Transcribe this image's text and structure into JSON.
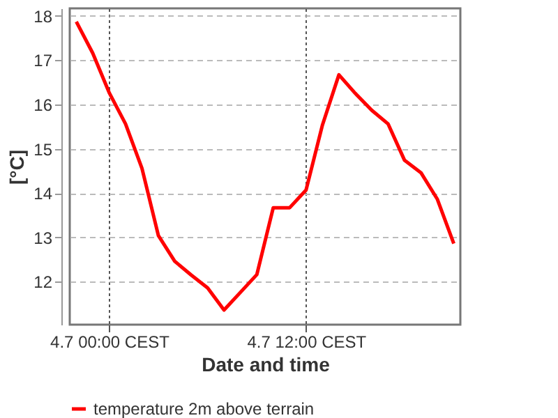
{
  "chart_data": {
    "type": "line",
    "xlabel": "Date and time",
    "ylabel": "[°C]",
    "x": [
      "--07-03T22:00",
      "--07-03T23:00",
      "--07-04T00:00",
      "--07-04T01:00",
      "--07-04T02:00",
      "--07-04T03:00",
      "--07-04T04:00",
      "--07-04T05:00",
      "--07-04T06:00",
      "--07-04T07:00",
      "--07-04T08:00",
      "--07-04T09:00",
      "--07-04T10:00",
      "--07-04T11:00",
      "--07-04T12:00",
      "--07-04T13:00",
      "--07-04T14:00",
      "--07-04T15:00",
      "--07-04T16:00",
      "--07-04T17:00",
      "--07-04T18:00",
      "--07-04T19:00",
      "--07-04T20:00",
      "--07-04T21:00"
    ],
    "series": [
      {
        "name": "temperature 2m above terrain",
        "color": "#ff0000",
        "values": [
          17.87,
          17.16,
          16.27,
          15.56,
          14.56,
          13.04,
          12.46,
          12.15,
          11.86,
          11.36,
          11.76,
          12.16,
          13.67,
          13.67,
          14.07,
          15.54,
          16.67,
          16.25,
          15.87,
          15.56,
          14.74,
          14.46,
          13.86,
          12.86
        ]
      }
    ],
    "xlim": [
      "--07-03T21:36",
      "--07-04T21:24"
    ],
    "xticks": [
      {
        "value": "--07-04T00:00",
        "label": "4.7 00:00 CEST"
      },
      {
        "value": "--07-04T12:00",
        "label": "4.7 12:00 CEST"
      }
    ],
    "ylim": [
      11.03,
      18.17
    ],
    "yticks": [
      12,
      13,
      14,
      15,
      16,
      17,
      18
    ],
    "grid": true,
    "legend": "bottom",
    "line_style": "solid"
  }
}
